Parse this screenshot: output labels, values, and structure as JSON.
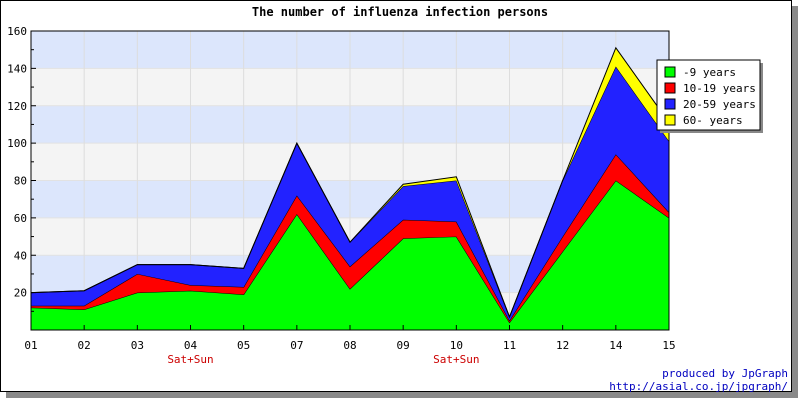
{
  "chart_data": {
    "type": "area",
    "stacked": true,
    "title": "The number of influenza infection persons",
    "xlabel": "",
    "ylabel": "",
    "categories": [
      "01",
      "02",
      "03",
      "04",
      "05",
      "07",
      "08",
      "09",
      "10",
      "11",
      "12",
      "14",
      "15"
    ],
    "category_notes": {
      "04": "Sat+Sun",
      "10": "Sat+Sun"
    },
    "ylim": [
      0,
      160
    ],
    "yticks": [
      20,
      40,
      60,
      80,
      100,
      120,
      140,
      160
    ],
    "grid": "horizontal bands",
    "legend_position": "top-right",
    "series": [
      {
        "name": "-9 years",
        "color": "#00ff00",
        "values": [
          12,
          11,
          20,
          21,
          19,
          62,
          22,
          49,
          50,
          4,
          42,
          80,
          60
        ]
      },
      {
        "name": "10-19 years",
        "color": "#ff0000",
        "values": [
          1,
          2,
          10,
          3,
          4,
          10,
          12,
          10,
          8,
          1,
          8,
          14,
          3
        ]
      },
      {
        "name": "20-59 years",
        "color": "#2222ff",
        "values": [
          7,
          8,
          5,
          11,
          10,
          28,
          13,
          18,
          22,
          2,
          30,
          47,
          38
        ]
      },
      {
        "name": "60- years",
        "color": "#ffff00",
        "values": [
          0,
          0,
          0,
          0,
          0,
          0,
          0,
          1,
          2,
          0,
          0,
          10,
          10
        ]
      }
    ]
  },
  "credits": {
    "line1": "produced by JpGraph",
    "line2": "http://asial.co.jp/jpgraph/"
  },
  "colors": {
    "note_text": "#cc0000",
    "band_blue": "#dce6fc",
    "band_gray": "#f4f4f4",
    "credit_text": "#0000c0"
  }
}
